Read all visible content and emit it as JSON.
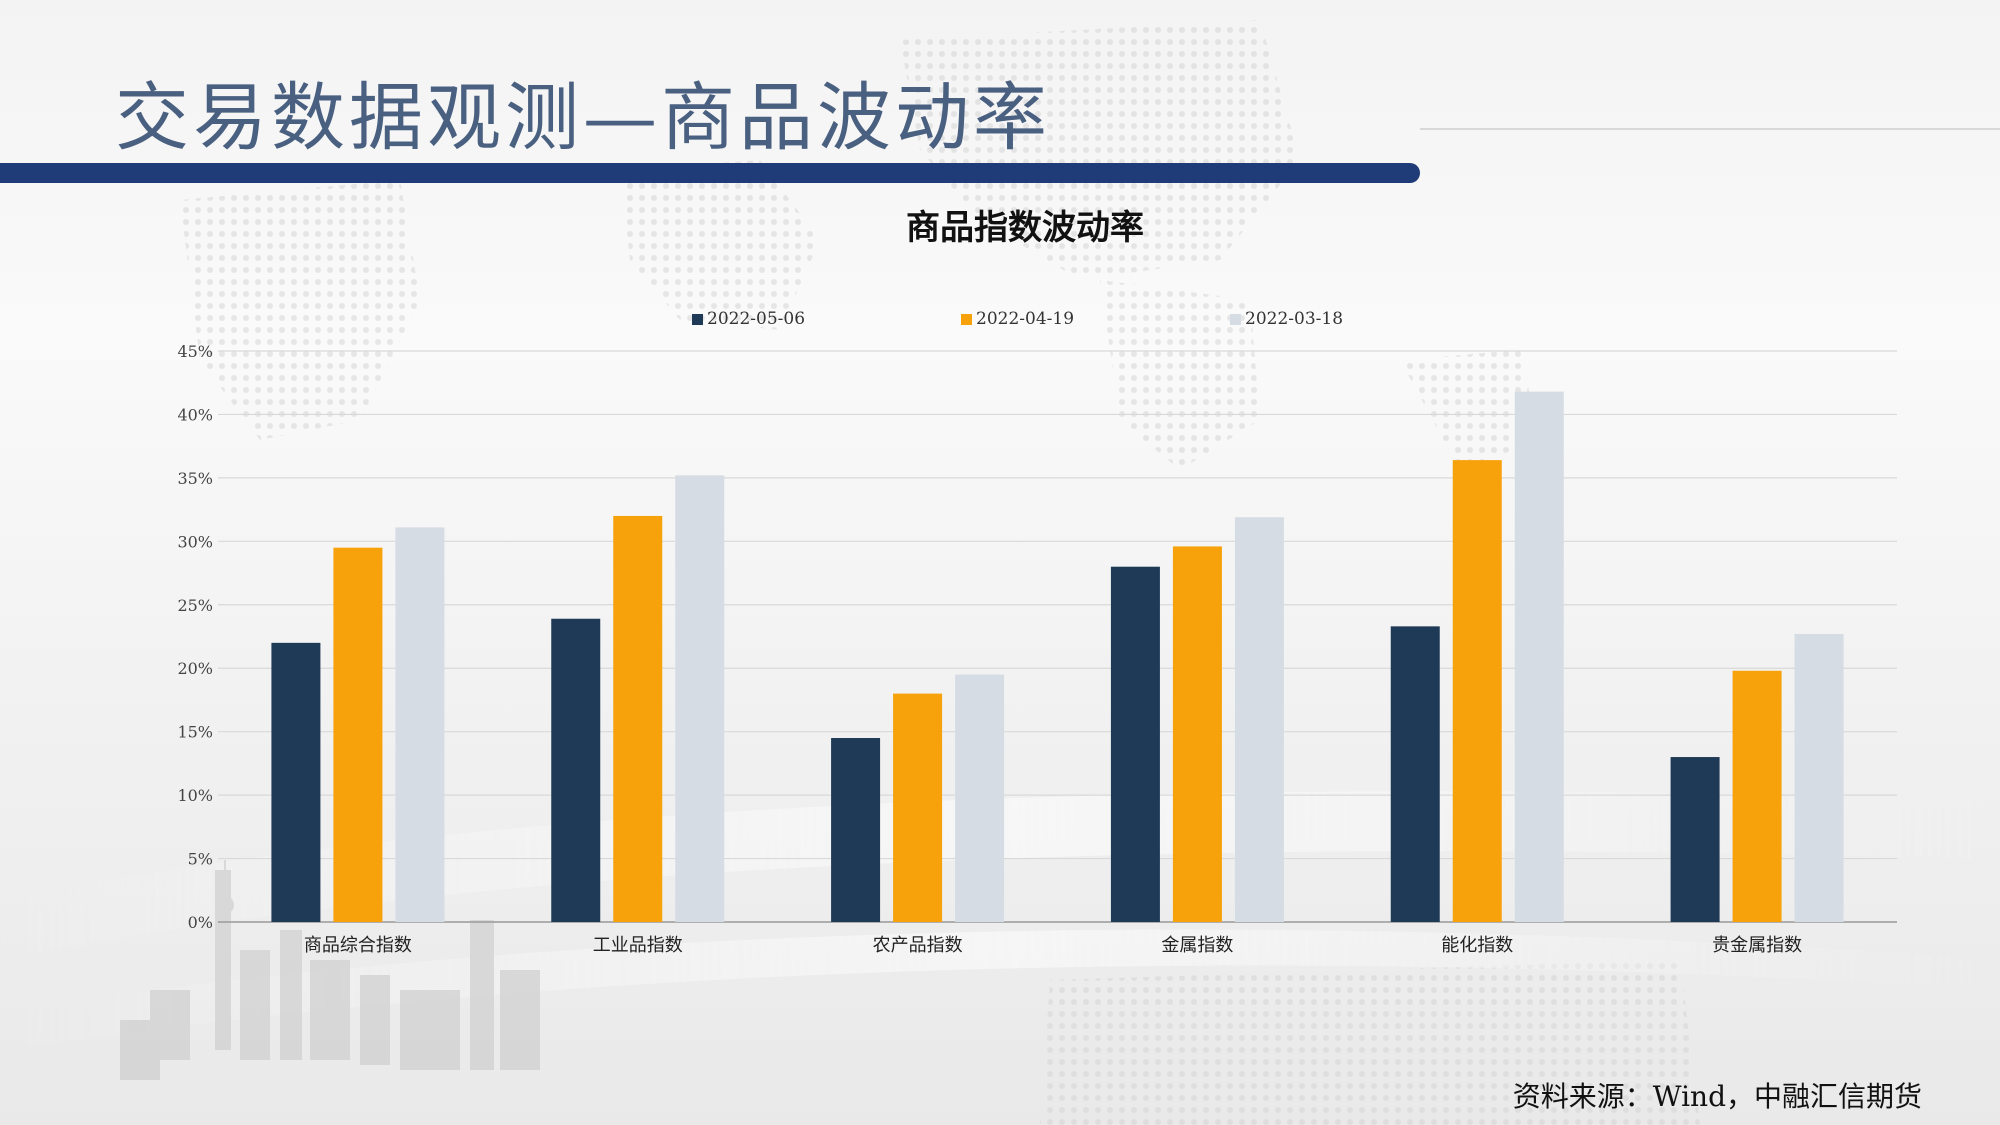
{
  "slide": {
    "title": "交易数据观测—商品波动率",
    "source": "资料来源：Wind，中融汇信期货"
  },
  "colors": {
    "title_text": "#4a6080",
    "title_bar": "#1f3c78",
    "series": [
      "#1f3a56",
      "#f7a20a",
      "#d6dce4"
    ]
  },
  "chart_data": {
    "type": "bar",
    "title": "商品指数波动率",
    "xlabel": "",
    "ylabel": "",
    "ylim": [
      0,
      45
    ],
    "y_ticks": [
      "0%",
      "5%",
      "10%",
      "15%",
      "20%",
      "25%",
      "30%",
      "35%",
      "40%",
      "45%"
    ],
    "y_tick_values": [
      0,
      5,
      10,
      15,
      20,
      25,
      30,
      35,
      40,
      45
    ],
    "categories": [
      "商品综合指数",
      "工业品指数",
      "农产品指数",
      "金属指数",
      "能化指数",
      "贵金属指数"
    ],
    "series": [
      {
        "name": "2022-05-06",
        "values": [
          22.0,
          23.9,
          14.5,
          28.0,
          23.3,
          13.0
        ]
      },
      {
        "name": "2022-04-19",
        "values": [
          29.5,
          32.0,
          18.0,
          29.6,
          36.4,
          19.8
        ]
      },
      {
        "name": "2022-03-18",
        "values": [
          31.1,
          35.2,
          19.5,
          31.9,
          41.8,
          22.7
        ]
      }
    ],
    "grid": true,
    "legend_position": "top"
  }
}
